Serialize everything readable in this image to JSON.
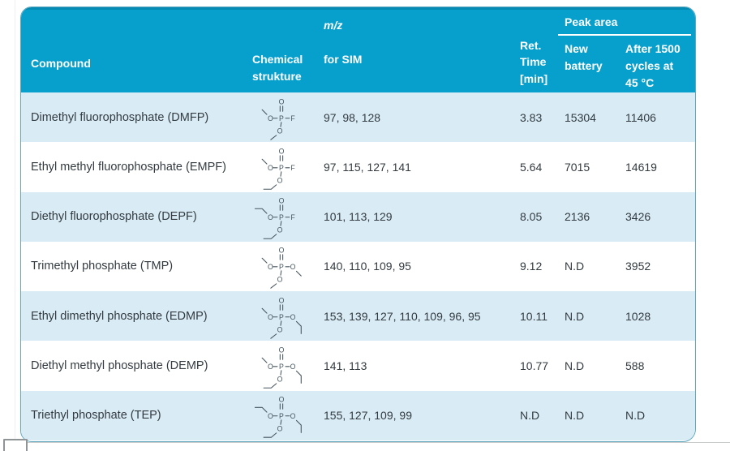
{
  "colors": {
    "header_bg": "#07a0cd",
    "header_text": "#ffffff",
    "row_alt_bg": "#d9ebf5",
    "row_bg": "#ffffff",
    "body_text": "#333b41",
    "table_border": "#5fa8bd",
    "structure_ink": "#46555f"
  },
  "table": {
    "headers": {
      "compound": "Compound",
      "structure": "Chemical\nstrukture",
      "mz_italic": "m/z",
      "mz_rest": "for SIM",
      "ret_time": "Ret.\nTime\n[min]",
      "peak_area": "Peak area",
      "new_battery": "New\nbattery",
      "after_cycles": "After 1500\ncycles at\n45 °C"
    },
    "rows": [
      {
        "compound": "Dimethyl fluorophosphate (DMFP)",
        "structure": {
          "name": "dimethyl fluorophosphate skeletal structure",
          "left_alkyl": "methyl",
          "right_group": "F",
          "bottom_alkyl": "methyl"
        },
        "mz": "97, 98, 128",
        "ret_time": "3.83",
        "new_battery": "15304",
        "after_cycles": "11406"
      },
      {
        "compound": "Ethyl methyl fluorophosphate (EMPF)",
        "structure": {
          "name": "ethyl methyl fluorophosphate skeletal structure",
          "left_alkyl": "methyl",
          "right_group": "F",
          "bottom_alkyl": "ethyl"
        },
        "mz": "97, 115, 127, 141",
        "ret_time": "5.64",
        "new_battery": "7015",
        "after_cycles": "14619"
      },
      {
        "compound": "Diethyl fluorophosphate (DEPF)",
        "structure": {
          "name": "diethyl fluorophosphate skeletal structure",
          "left_alkyl": "ethyl",
          "right_group": "F",
          "bottom_alkyl": "ethyl"
        },
        "mz": "101, 113, 129",
        "ret_time": "8.05",
        "new_battery": "2136",
        "after_cycles": "3426"
      },
      {
        "compound": "Trimethyl phosphate (TMP)",
        "structure": {
          "name": "trimethyl phosphate skeletal structure",
          "left_alkyl": "methyl",
          "right_group": "O-methyl",
          "bottom_alkyl": "methyl"
        },
        "mz": "140, 110, 109, 95",
        "ret_time": "9.12",
        "new_battery": "N.D",
        "after_cycles": "3952"
      },
      {
        "compound": "Ethyl dimethyl phosphate (EDMP)",
        "structure": {
          "name": "ethyl dimethyl phosphate skeletal structure",
          "left_alkyl": "methyl",
          "right_group": "O-ethyl",
          "bottom_alkyl": "methyl"
        },
        "mz": "153, 139, 127, 110, 109, 96, 95",
        "ret_time": "10.11",
        "new_battery": "N.D",
        "after_cycles": "1028"
      },
      {
        "compound": "Diethyl methyl phosphate (DEMP)",
        "structure": {
          "name": "diethyl methyl phosphate skeletal structure",
          "left_alkyl": "methyl",
          "right_group": "O-ethyl",
          "bottom_alkyl": "ethyl"
        },
        "mz": "141, 113",
        "ret_time": "10.77",
        "new_battery": "N.D",
        "after_cycles": "588"
      },
      {
        "compound": "Triethyl phosphate (TEP)",
        "structure": {
          "name": "triethyl phosphate skeletal structure",
          "left_alkyl": "ethyl",
          "right_group": "O-ethyl",
          "bottom_alkyl": "ethyl"
        },
        "mz": "155, 127, 109, 99",
        "ret_time": "N.D",
        "new_battery": "N.D",
        "after_cycles": "N.D"
      }
    ]
  }
}
